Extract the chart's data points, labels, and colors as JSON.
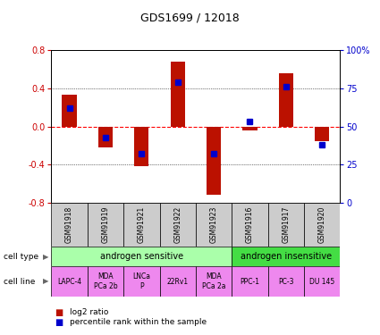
{
  "title": "GDS1699 / 12018",
  "samples": [
    "GSM91918",
    "GSM91919",
    "GSM91921",
    "GSM91922",
    "GSM91923",
    "GSM91916",
    "GSM91917",
    "GSM91920"
  ],
  "log2_ratio": [
    0.33,
    -0.22,
    -0.42,
    0.68,
    -0.72,
    -0.04,
    0.56,
    -0.15
  ],
  "percentile_rank_pct": [
    62,
    43,
    32,
    79,
    32,
    53,
    76,
    38
  ],
  "cell_type_groups": [
    {
      "label": "androgen sensitive",
      "start": 0,
      "end": 5,
      "color": "#aaffaa"
    },
    {
      "label": "androgen insensitive",
      "start": 5,
      "end": 8,
      "color": "#44dd44"
    }
  ],
  "cell_lines": [
    "LAPC-4",
    "MDA\nPCa 2b",
    "LNCa\nP",
    "22Rv1",
    "MDA\nPCa 2a",
    "PPC-1",
    "PC-3",
    "DU 145"
  ],
  "cell_line_color": "#ee88ee",
  "sample_bg_color": "#cccccc",
  "ylim": [
    -0.8,
    0.8
  ],
  "yticks_left": [
    -0.8,
    -0.4,
    0.0,
    0.4,
    0.8
  ],
  "bar_color": "#bb1100",
  "dot_color": "#0000cc",
  "legend_bar_label": "log2 ratio",
  "legend_dot_label": "percentile rank within the sample",
  "ylabel_left_color": "#cc0000",
  "ylabel_right_color": "#0000cc",
  "right_tick_labels": [
    "0",
    "25",
    "50",
    "75",
    "100%"
  ],
  "right_tick_positions": [
    -0.8,
    -0.4,
    0.0,
    0.4,
    0.8
  ]
}
